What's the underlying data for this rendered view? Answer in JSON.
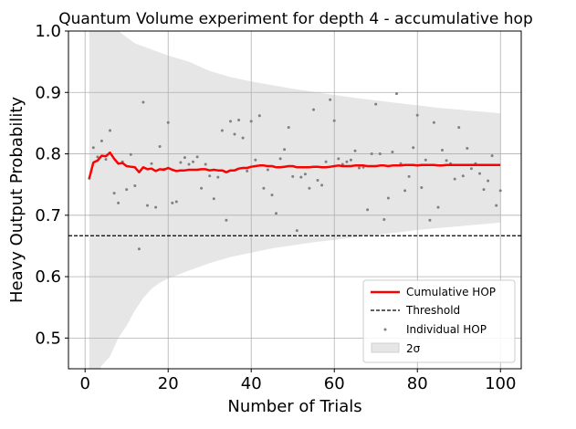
{
  "chart_data": {
    "type": "line",
    "title": "Quantum Volume experiment for depth 4 - accumulative hop",
    "xlabel": "Number of Trials",
    "ylabel": "Heavy Output Probability",
    "xlim": [
      -4,
      105
    ],
    "ylim": [
      0.45,
      1.0
    ],
    "xticks": [
      0,
      20,
      40,
      60,
      80,
      100
    ],
    "xtick_labels": [
      "0",
      "20",
      "40",
      "60",
      "80",
      "100"
    ],
    "yticks": [
      0.5,
      0.6,
      0.7,
      0.8,
      0.9,
      1.0
    ],
    "ytick_labels": [
      "0.5",
      "0.6",
      "0.7",
      "0.8",
      "0.9",
      "1.0"
    ],
    "grid": true,
    "legend_position": "lower-right",
    "legend": [
      "Cumulative HOP",
      "Threshold",
      "Individual HOP",
      "2σ"
    ],
    "colors": {
      "cumulative": "#ff0000",
      "threshold": "#000000",
      "individual": "#808080",
      "band": "#e6e6e6",
      "grid": "#b0b0b0"
    },
    "threshold": 0.6667,
    "cumulative_hop": {
      "x": [
        1,
        2,
        3,
        4,
        5,
        6,
        7,
        8,
        9,
        10,
        11,
        12,
        13,
        14,
        15,
        16,
        17,
        18,
        19,
        20,
        21,
        22,
        23,
        24,
        25,
        26,
        27,
        28,
        29,
        30,
        31,
        32,
        33,
        34,
        35,
        36,
        37,
        38,
        39,
        40,
        41,
        42,
        43,
        44,
        45,
        46,
        47,
        48,
        49,
        50,
        51,
        52,
        53,
        54,
        55,
        56,
        57,
        58,
        59,
        60,
        61,
        62,
        63,
        64,
        65,
        66,
        67,
        68,
        69,
        70,
        71,
        72,
        73,
        74,
        75,
        76,
        77,
        78,
        79,
        80,
        81,
        82,
        83,
        84,
        85,
        86,
        87,
        88,
        89,
        90,
        91,
        92,
        93,
        94,
        95,
        96,
        97,
        98,
        99,
        100
      ],
      "y": [
        0.76,
        0.786,
        0.789,
        0.797,
        0.796,
        0.802,
        0.792,
        0.784,
        0.785,
        0.78,
        0.779,
        0.778,
        0.77,
        0.778,
        0.775,
        0.776,
        0.772,
        0.775,
        0.774,
        0.777,
        0.774,
        0.772,
        0.773,
        0.773,
        0.774,
        0.774,
        0.774,
        0.775,
        0.775,
        0.773,
        0.774,
        0.773,
        0.773,
        0.77,
        0.773,
        0.773,
        0.776,
        0.777,
        0.777,
        0.779,
        0.78,
        0.781,
        0.781,
        0.78,
        0.78,
        0.778,
        0.778,
        0.779,
        0.78,
        0.78,
        0.778,
        0.778,
        0.778,
        0.778,
        0.779,
        0.779,
        0.778,
        0.778,
        0.779,
        0.78,
        0.781,
        0.78,
        0.78,
        0.78,
        0.781,
        0.781,
        0.781,
        0.78,
        0.78,
        0.78,
        0.781,
        0.781,
        0.78,
        0.781,
        0.781,
        0.781,
        0.782,
        0.782,
        0.782,
        0.781,
        0.782,
        0.782,
        0.782,
        0.782,
        0.781,
        0.781,
        0.782,
        0.782,
        0.782,
        0.782,
        0.782,
        0.782,
        0.782,
        0.782,
        0.782,
        0.782,
        0.782,
        0.782,
        0.782,
        0.782
      ]
    },
    "individual_hop": {
      "x": [
        1,
        2,
        3,
        4,
        5,
        6,
        7,
        8,
        9,
        10,
        11,
        12,
        13,
        14,
        15,
        16,
        17,
        18,
        19,
        20,
        21,
        22,
        23,
        24,
        25,
        26,
        27,
        28,
        29,
        30,
        31,
        32,
        33,
        34,
        35,
        36,
        37,
        38,
        39,
        40,
        41,
        42,
        43,
        44,
        45,
        46,
        47,
        48,
        49,
        50,
        51,
        52,
        53,
        54,
        55,
        56,
        57,
        58,
        59,
        60,
        61,
        62,
        63,
        64,
        65,
        66,
        67,
        68,
        69,
        70,
        71,
        72,
        73,
        74,
        75,
        76,
        77,
        78,
        79,
        80,
        81,
        82,
        83,
        84,
        85,
        86,
        87,
        88,
        89,
        90,
        91,
        92,
        93,
        94,
        95,
        96,
        97,
        98,
        99,
        100
      ],
      "y": [
        0.76,
        0.81,
        0.795,
        0.821,
        0.791,
        0.838,
        0.736,
        0.72,
        0.787,
        0.742,
        0.799,
        0.748,
        0.645,
        0.884,
        0.716,
        0.784,
        0.713,
        0.812,
        0.775,
        0.851,
        0.72,
        0.722,
        0.786,
        0.794,
        0.783,
        0.787,
        0.795,
        0.744,
        0.783,
        0.764,
        0.727,
        0.762,
        0.838,
        0.692,
        0.853,
        0.832,
        0.855,
        0.826,
        0.772,
        0.853,
        0.79,
        0.862,
        0.744,
        0.774,
        0.733,
        0.703,
        0.792,
        0.807,
        0.843,
        0.763,
        0.675,
        0.762,
        0.767,
        0.744,
        0.872,
        0.757,
        0.749,
        0.787,
        0.888,
        0.854,
        0.792,
        0.783,
        0.787,
        0.79,
        0.805,
        0.777,
        0.778,
        0.709,
        0.8,
        0.881,
        0.8,
        0.693,
        0.728,
        0.803,
        0.898,
        0.784,
        0.74,
        0.763,
        0.81,
        0.863,
        0.745,
        0.79,
        0.692,
        0.851,
        0.713,
        0.806,
        0.789,
        0.784,
        0.759,
        0.843,
        0.764,
        0.809,
        0.776,
        0.784,
        0.768,
        0.742,
        0.756,
        0.797,
        0.716,
        0.74
      ]
    },
    "band_2sigma": {
      "x": [
        1,
        2,
        4,
        6,
        8,
        10,
        12,
        14,
        16,
        18,
        20,
        25,
        30,
        35,
        40,
        45,
        50,
        55,
        60,
        65,
        70,
        75,
        80,
        85,
        90,
        95,
        100
      ],
      "upper": [
        1.15,
        1.1,
        1.05,
        1.02,
        1.0,
        0.99,
        0.98,
        0.975,
        0.97,
        0.965,
        0.96,
        0.95,
        0.935,
        0.925,
        0.918,
        0.912,
        0.906,
        0.901,
        0.896,
        0.891,
        0.887,
        0.883,
        0.879,
        0.875,
        0.872,
        0.869,
        0.866
      ],
      "lower": [
        0.4,
        0.43,
        0.455,
        0.47,
        0.5,
        0.52,
        0.545,
        0.565,
        0.58,
        0.59,
        0.597,
        0.61,
        0.622,
        0.632,
        0.639,
        0.646,
        0.651,
        0.656,
        0.66,
        0.664,
        0.668,
        0.672,
        0.676,
        0.679,
        0.682,
        0.685,
        0.688
      ]
    }
  }
}
